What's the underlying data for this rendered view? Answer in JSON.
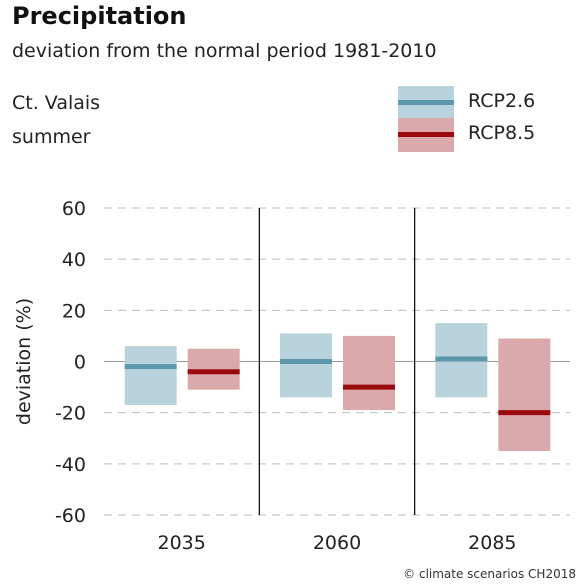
{
  "header": {
    "title": "Precipitation",
    "subtitle": "deviation from the normal period 1981-2010",
    "region": "Ct. Valais",
    "season": "summer"
  },
  "legend": [
    {
      "label": "RCP2.6",
      "box_color": "#b9d3dc",
      "line_color": "#5d97ab"
    },
    {
      "label": "RCP8.5",
      "box_color": "#dba8ab",
      "line_color": "#9a0a0d"
    }
  ],
  "credit": "© climate scenarios CH2018",
  "chart_data": {
    "type": "bar",
    "title": "Precipitation",
    "subtitle": "deviation from the normal period 1981-2010",
    "ylabel": "deviation (%)",
    "xlabel": "",
    "ylim": [
      -60,
      60
    ],
    "yticks": [
      60,
      40,
      20,
      0,
      -20,
      -40,
      -60
    ],
    "categories": [
      "2035",
      "2060",
      "2085"
    ],
    "grid": "horizontal dashed",
    "legend_position": "top-right",
    "series": [
      {
        "name": "RCP2.6",
        "color": "#b9d3dc",
        "median_color": "#5d97ab",
        "low": [
          -17,
          -14,
          -14
        ],
        "high": [
          6,
          11,
          15
        ],
        "median": [
          -2,
          0,
          1
        ]
      },
      {
        "name": "RCP8.5",
        "color": "#dba8ab",
        "median_color": "#9a0a0d",
        "low": [
          -11,
          -19,
          -35
        ],
        "high": [
          5,
          10,
          9
        ],
        "median": [
          -4,
          -10,
          -20
        ]
      }
    ]
  }
}
